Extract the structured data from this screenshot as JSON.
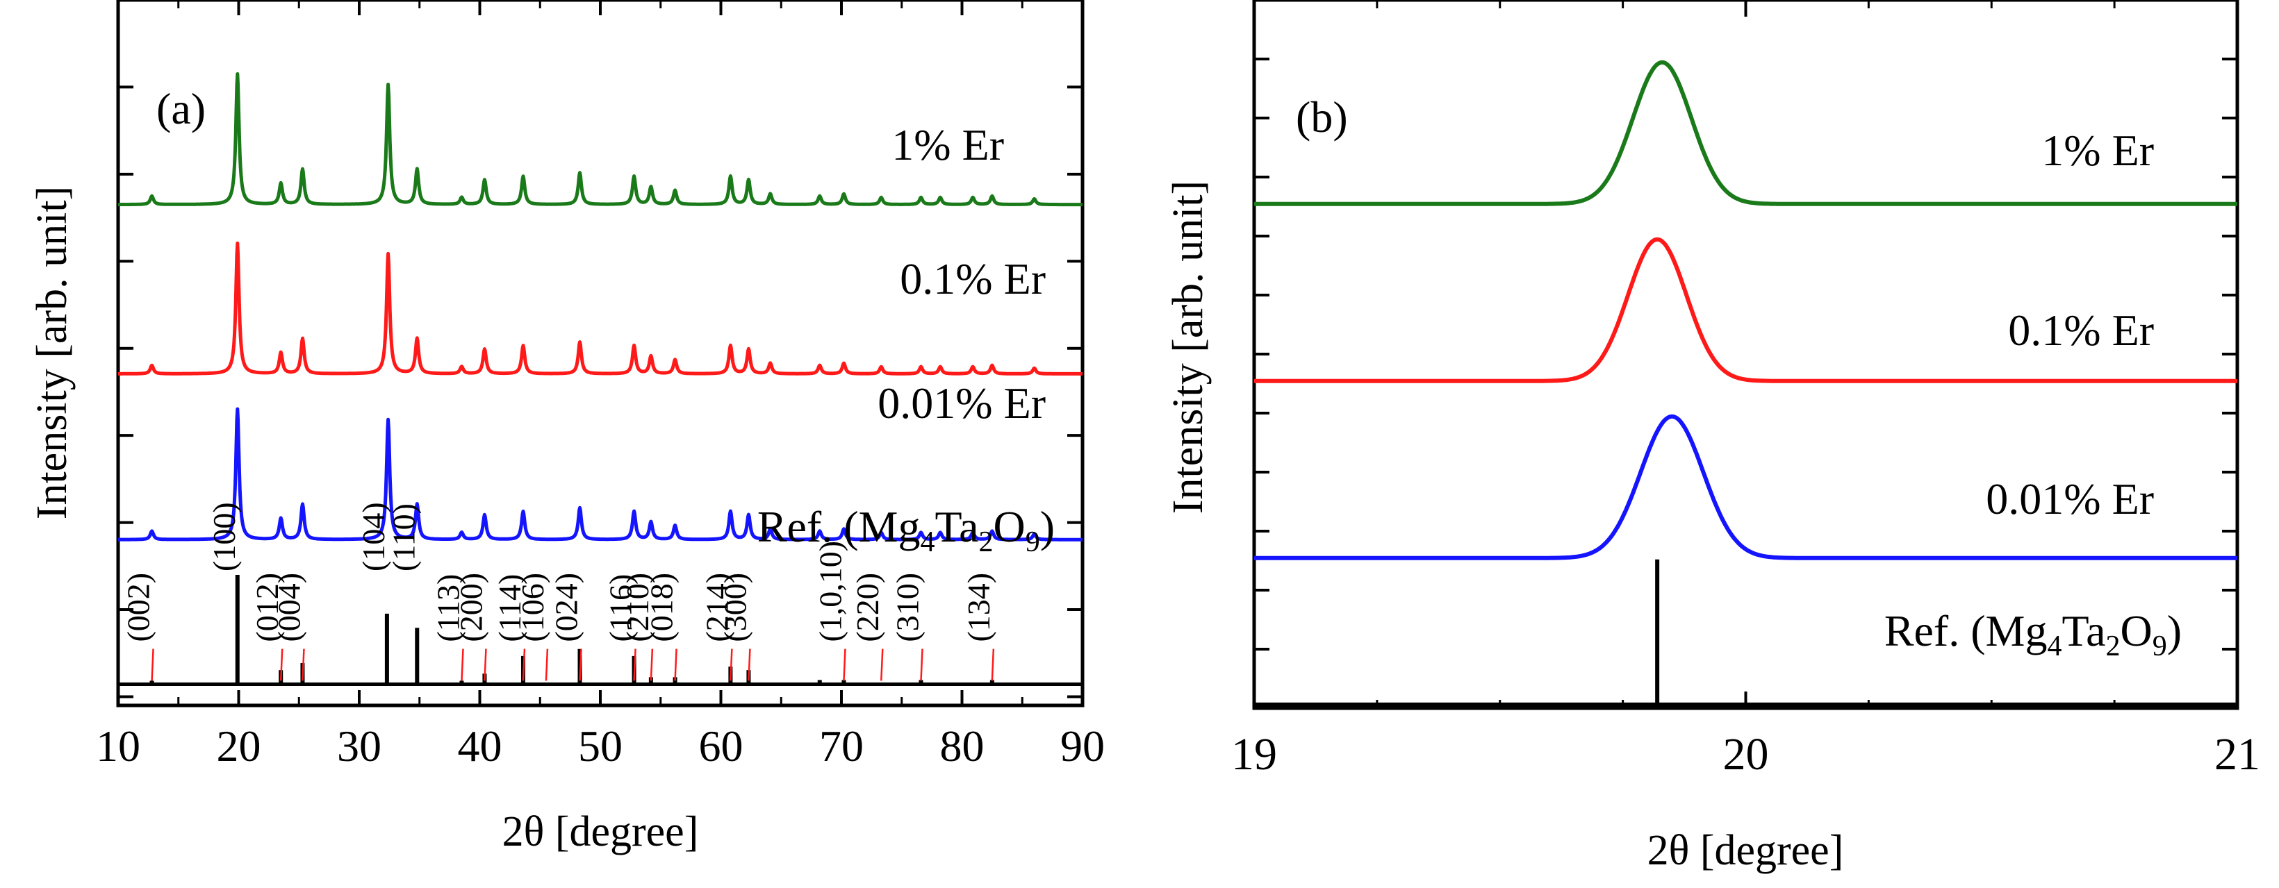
{
  "chart_data": [
    {
      "type": "line",
      "panel_label": "(a)",
      "xlabel": "2θ [degree]",
      "ylabel": "Intensity [arb. unit]",
      "xlim": [
        10,
        90
      ],
      "xticks": [
        "10",
        "20",
        "30",
        "40",
        "50",
        "60",
        "70",
        "80",
        "90"
      ],
      "series": [
        {
          "name": "1% Er",
          "color": "#1a7a1a",
          "baseline_level": 0.71
        },
        {
          "name": "0.1% Er",
          "color": "#ff1a1a",
          "baseline_level": 0.47
        },
        {
          "name": "0.01% Er",
          "color": "#1414ff",
          "baseline_level": 0.235
        }
      ],
      "peaks": [
        {
          "x": 12.8,
          "intensity": 0.012
        },
        {
          "x": 19.9,
          "intensity": 0.185
        },
        {
          "x": 23.5,
          "intensity": 0.03
        },
        {
          "x": 25.3,
          "intensity": 0.05
        },
        {
          "x": 32.4,
          "intensity": 0.17
        },
        {
          "x": 34.8,
          "intensity": 0.05
        },
        {
          "x": 38.5,
          "intensity": 0.01
        },
        {
          "x": 40.4,
          "intensity": 0.035
        },
        {
          "x": 43.6,
          "intensity": 0.04
        },
        {
          "x": 48.3,
          "intensity": 0.045
        },
        {
          "x": 52.8,
          "intensity": 0.04
        },
        {
          "x": 54.2,
          "intensity": 0.025
        },
        {
          "x": 56.2,
          "intensity": 0.02
        },
        {
          "x": 60.8,
          "intensity": 0.04
        },
        {
          "x": 62.3,
          "intensity": 0.035
        },
        {
          "x": 64.1,
          "intensity": 0.015
        },
        {
          "x": 68.2,
          "intensity": 0.012
        },
        {
          "x": 70.2,
          "intensity": 0.015
        },
        {
          "x": 73.3,
          "intensity": 0.01
        },
        {
          "x": 76.6,
          "intensity": 0.01
        },
        {
          "x": 78.2,
          "intensity": 0.01
        },
        {
          "x": 80.9,
          "intensity": 0.01
        },
        {
          "x": 82.5,
          "intensity": 0.012
        },
        {
          "x": 86.0,
          "intensity": 0.008
        }
      ],
      "reference": {
        "label_text": "Ref. (Mg",
        "sub1": "4",
        "mid_text": "Ta",
        "sub2": "2",
        "mid2_text": "O",
        "sub3": "9",
        "close_text": ")",
        "sticks": [
          {
            "x": 12.8,
            "height": 0.005
          },
          {
            "x": 19.9,
            "height": 0.155
          },
          {
            "x": 23.5,
            "height": 0.02
          },
          {
            "x": 25.3,
            "height": 0.03
          },
          {
            "x": 32.3,
            "height": 0.1
          },
          {
            "x": 34.8,
            "height": 0.08
          },
          {
            "x": 38.5,
            "height": 0.005
          },
          {
            "x": 40.4,
            "height": 0.015
          },
          {
            "x": 43.6,
            "height": 0.04
          },
          {
            "x": 48.3,
            "height": 0.05
          },
          {
            "x": 52.8,
            "height": 0.04
          },
          {
            "x": 54.2,
            "height": 0.01
          },
          {
            "x": 56.2,
            "height": 0.01
          },
          {
            "x": 60.8,
            "height": 0.025
          },
          {
            "x": 62.3,
            "height": 0.02
          },
          {
            "x": 68.2,
            "height": 0.006
          },
          {
            "x": 70.2,
            "height": 0.006
          },
          {
            "x": 76.6,
            "height": 0.006
          },
          {
            "x": 82.5,
            "height": 0.006
          }
        ],
        "hkl_labels": [
          {
            "text": "(002)",
            "x": 12.8
          },
          {
            "text": "(100)",
            "x": 19.9
          },
          {
            "text": "(012)",
            "x": 23.5
          },
          {
            "text": "(004)",
            "x": 25.3
          },
          {
            "text": "(104)",
            "x": 32.3
          },
          {
            "text": "(110)",
            "x": 34.8
          },
          {
            "text": "(113)",
            "x": 38.5
          },
          {
            "text": "(200)",
            "x": 40.4
          },
          {
            "text": "(114)",
            "x": 43.6
          },
          {
            "text": "(106)",
            "x": 45.5
          },
          {
            "text": "(024)",
            "x": 48.3
          },
          {
            "text": "(116)",
            "x": 52.8
          },
          {
            "text": "(210)",
            "x": 54.2
          },
          {
            "text": "(018)",
            "x": 56.2
          },
          {
            "text": "(214)",
            "x": 60.8
          },
          {
            "text": "(300)",
            "x": 62.3
          },
          {
            "text": "(1,0,10)",
            "x": 70.2
          },
          {
            "text": "(220)",
            "x": 73.3
          },
          {
            "text": "(310)",
            "x": 76.6
          },
          {
            "text": "(134)",
            "x": 82.5
          }
        ]
      }
    },
    {
      "type": "line",
      "panel_label": "(b)",
      "xlabel": "2θ [degree]",
      "ylabel": "Intensity [arb. unit]",
      "xlim": [
        19,
        21
      ],
      "xticks": [
        "19",
        "20",
        "21"
      ],
      "series": [
        {
          "name": "1% Er",
          "color": "#1a7a1a",
          "peak_x": 19.83,
          "fwhm": 0.14,
          "baseline_level": 0.712,
          "peak_height": 0.2
        },
        {
          "name": "0.1% Er",
          "color": "#ff1a1a",
          "peak_x": 19.82,
          "fwhm": 0.14,
          "baseline_level": 0.462,
          "peak_height": 0.2
        },
        {
          "name": "0.01% Er",
          "color": "#1414ff",
          "peak_x": 19.85,
          "fwhm": 0.15,
          "baseline_level": 0.212,
          "peak_height": 0.2
        }
      ],
      "reference": {
        "label_text": "Ref. (Mg",
        "sub1": "4",
        "mid_text": "Ta",
        "sub2": "2",
        "mid2_text": "O",
        "sub3": "9",
        "close_text": ")",
        "stick_x": 19.82,
        "stick_height": 0.205
      }
    }
  ]
}
